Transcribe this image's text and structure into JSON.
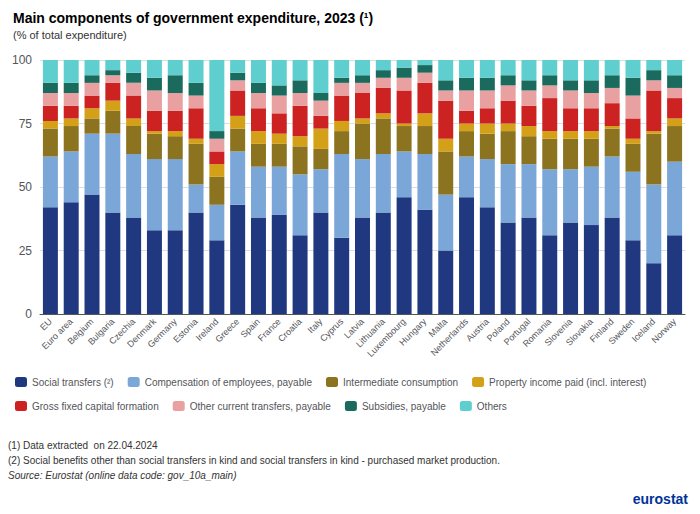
{
  "chart_data": {
    "type": "bar",
    "title": "Main components of government expenditure, 2023 (¹)",
    "subtitle": "(% of total expenditure)",
    "annotations": [
      "(1) Data extracted  on 22.04.2024",
      "(2) Social benefits other than social transfers in kind and social transfers in kind - purchased market production.",
      "Source: Eurostat (online data code: gov_10a_main)",
      "eurostat"
    ],
    "categories": [
      "EU",
      "Euro area",
      "Belgium",
      "Bulgaria",
      "Czechia",
      "Denmark",
      "Germany",
      "Estonia",
      "Ireland",
      "Greece",
      "Spain",
      "France",
      "Croatia",
      "Italy",
      "Cyprus",
      "Latvia",
      "Lithuania",
      "Luxembourg",
      "Hungary",
      "Malta",
      "Netherlands",
      "Austria",
      "Poland",
      "Portugal",
      "Romania",
      "Slovenia",
      "Slovakia",
      "Finland",
      "Sweden",
      "Iceland",
      "Norway"
    ],
    "series": [
      {
        "name": "Social transfers (²)",
        "color": "#1f3880",
        "values": [
          42,
          44,
          47,
          40,
          38,
          33,
          33,
          40,
          29,
          43,
          38,
          39,
          31,
          40,
          30,
          38,
          40,
          46,
          41,
          25,
          46,
          42,
          36,
          38,
          31,
          36,
          35,
          38,
          29,
          20,
          31
        ]
      },
      {
        "name": "Compensation of employees, payable",
        "color": "#7ba7d8",
        "values": [
          20,
          20,
          24,
          31,
          25,
          28,
          28,
          11,
          14,
          21,
          20,
          19,
          24,
          17,
          33,
          23,
          23,
          18,
          22,
          22,
          16,
          19,
          23,
          21,
          26,
          21,
          23,
          24,
          27,
          31,
          29
        ]
      },
      {
        "name": "Intermediate consumption",
        "color": "#8b7320",
        "values": [
          11,
          10,
          6,
          9,
          11,
          10,
          9,
          16,
          11,
          9,
          9,
          9,
          11,
          8,
          9,
          14,
          14,
          10,
          11,
          17,
          10,
          10,
          13,
          11,
          12,
          12,
          11,
          11,
          11,
          20,
          14
        ]
      },
      {
        "name": "Property income paid (incl. interest)",
        "color": "#d4a017",
        "values": [
          3,
          3,
          4,
          4,
          3,
          1,
          2,
          2,
          5,
          5,
          5,
          4,
          4,
          8,
          4,
          2,
          2,
          1,
          5,
          5,
          3,
          4,
          3,
          4,
          3,
          3,
          3,
          1,
          2,
          1,
          3
        ]
      },
      {
        "name": "Gross fixed capital formation",
        "color": "#cc2222",
        "values": [
          6,
          5,
          5,
          7,
          9,
          8,
          8,
          12,
          5,
          10,
          9,
          8,
          12,
          5,
          10,
          10,
          10,
          13,
          12,
          15,
          5,
          6,
          9,
          8,
          13,
          9,
          9,
          9,
          8,
          16,
          8
        ]
      },
      {
        "name": "Other current transfers, payable",
        "color": "#e8a0a0",
        "values": [
          5,
          5,
          5,
          3,
          5,
          8,
          7,
          5,
          5,
          4,
          6,
          7,
          5,
          6,
          5,
          4,
          4,
          5,
          4,
          4,
          8,
          7,
          6,
          6,
          5,
          7,
          6,
          6,
          9,
          4,
          4
        ]
      },
      {
        "name": "Subsidies, payable",
        "color": "#1a6b5e",
        "values": [
          4,
          4,
          3,
          2,
          4,
          5,
          7,
          5,
          3,
          3,
          4,
          4,
          5,
          3,
          2,
          3,
          3,
          4,
          3,
          4,
          5,
          5,
          4,
          4,
          4,
          4,
          5,
          5,
          7,
          4,
          5
        ]
      },
      {
        "name": "Others",
        "color": "#5ecece",
        "values": [
          9,
          9,
          6,
          4,
          5,
          7,
          6,
          9,
          28,
          5,
          9,
          10,
          8,
          13,
          7,
          6,
          4,
          3,
          2,
          8,
          7,
          7,
          6,
          8,
          6,
          8,
          8,
          6,
          7,
          4,
          6
        ]
      }
    ],
    "ylim": [
      0,
      100
    ],
    "yticks": [
      0,
      25,
      50,
      75,
      100
    ],
    "stacked": true,
    "grid": true,
    "legend": "bottom"
  }
}
